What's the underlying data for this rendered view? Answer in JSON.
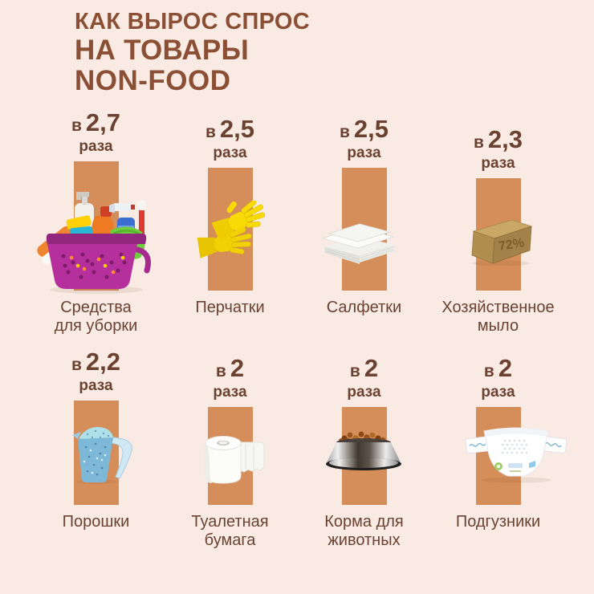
{
  "title": {
    "line1": "КАК ВЫРОС СПРОС",
    "line2": "НА ТОВАРЫ",
    "line3": "NON-FOOD"
  },
  "labels": {
    "prefix": "в",
    "times": "раза"
  },
  "items": [
    {
      "value": 2.7,
      "value_display": "2,7",
      "label_line1": "Средства",
      "label_line2": "для уборки",
      "image": "cleaning-supplies"
    },
    {
      "value": 2.5,
      "value_display": "2,5",
      "label_line1": "Перчатки",
      "label_line2": "",
      "image": "rubber-gloves"
    },
    {
      "value": 2.5,
      "value_display": "2,5",
      "label_line1": "Салфетки",
      "label_line2": "",
      "image": "napkins"
    },
    {
      "value": 2.3,
      "value_display": "2,3",
      "label_line1": "Хозяйственное",
      "label_line2": "мыло",
      "image": "laundry-soap",
      "embossed_text": "72%"
    },
    {
      "value": 2.2,
      "value_display": "2,2",
      "label_line1": "Порошки",
      "label_line2": "",
      "image": "washing-powder"
    },
    {
      "value": 2.0,
      "value_display": "2",
      "label_line1": "Туалетная",
      "label_line2": "бумага",
      "image": "toilet-paper"
    },
    {
      "value": 2.0,
      "value_display": "2",
      "label_line1": "Корма для",
      "label_line2": "животных",
      "image": "pet-food"
    },
    {
      "value": 2.0,
      "value_display": "2",
      "label_line1": "Подгузники",
      "label_line2": "",
      "image": "diapers"
    }
  ],
  "colors": {
    "background": "#f9ebe3",
    "bar": "#d58e59",
    "title_text": "#8a4f35",
    "value_text": "#6b4231",
    "caption_text": "#6a4233"
  },
  "chart_data": {
    "type": "bar",
    "title": "КАК ВЫРОС СПРОС НА ТОВАРЫ NON-FOOD",
    "categories": [
      "Средства для уборки",
      "Перчатки",
      "Салфетки",
      "Хозяйственное мыло",
      "Порошки",
      "Туалетная бумага",
      "Корма для животных",
      "Подгузники"
    ],
    "values": [
      2.7,
      2.5,
      2.5,
      2.3,
      2.2,
      2.0,
      2.0,
      2.0
    ],
    "value_labels": [
      "в 2,7 раза",
      "в 2,5 раза",
      "в 2,5 раза",
      "в 2,3 раза",
      "в 2,2 раза",
      "в 2 раза",
      "в 2 раза",
      "в 2 раза"
    ],
    "unit": "рост спроса, раз",
    "orientation": "vertical",
    "layout": "pictogram bars, 2 rows x 4 columns, bars bottom-aligned per row, product photo overlaps each bar",
    "ylim": [
      0,
      2.7
    ],
    "grid": false,
    "legend": false,
    "bar_color": "#d58e59"
  }
}
